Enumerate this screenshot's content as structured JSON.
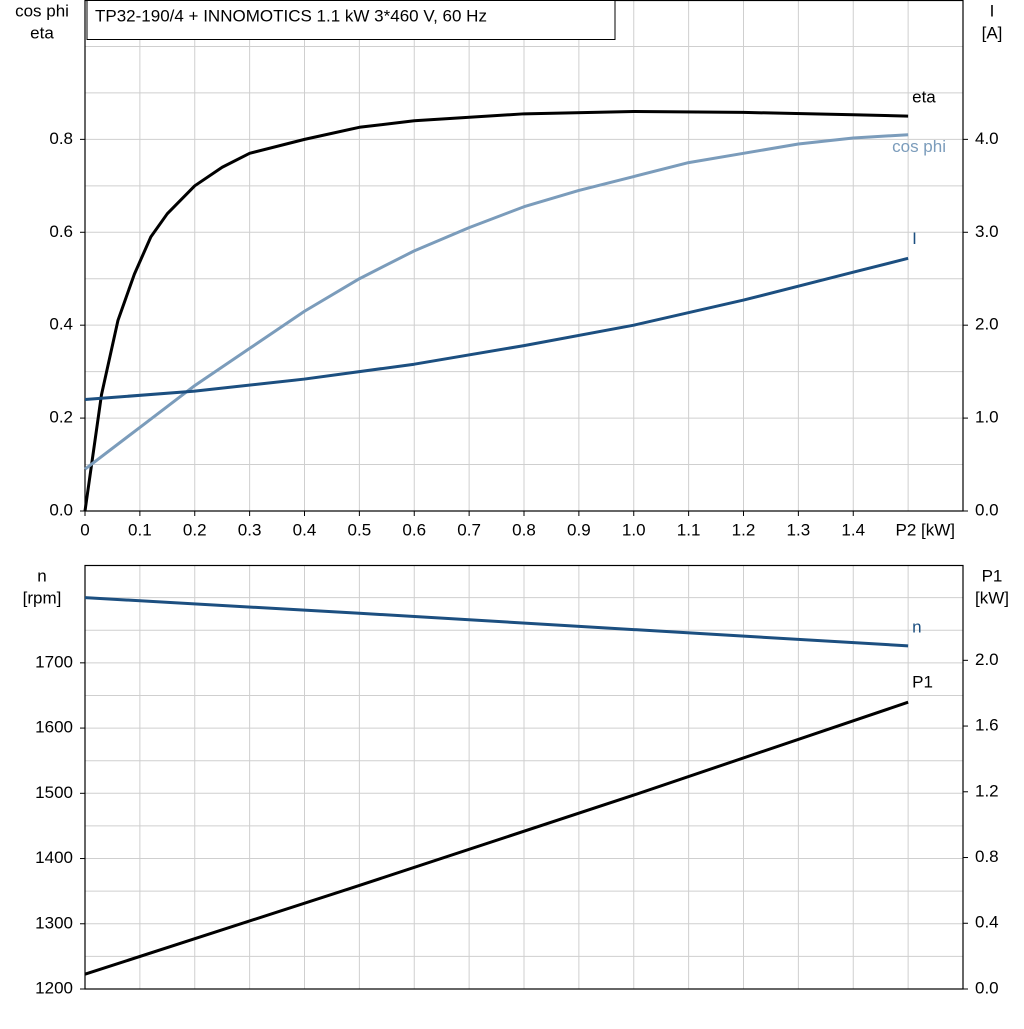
{
  "chart_data": [
    {
      "type": "line",
      "title": "TP32-190/4 + INNOMOTICS   1.1 kW   3*460 V, 60 Hz",
      "y_label": [
        "cos phi",
        "eta"
      ],
      "y2_label": [
        "I",
        "[A]"
      ],
      "x_label": "P2 [kW]",
      "xlim": [
        0,
        1.6
      ],
      "xticks": [
        0,
        0.1,
        0.2,
        0.3,
        0.4,
        0.5,
        0.6,
        0.7,
        0.8,
        0.9,
        {
          "value": 1,
          "label": "1.0"
        },
        1.1,
        1.2,
        1.3,
        1.4
      ],
      "x_minor_ticks": [
        1.5
      ],
      "ylim": [
        0,
        1.1
      ],
      "yticks": [
        {
          "value": 0,
          "label": "0.0"
        },
        0.2,
        0.4,
        0.6,
        0.8
      ],
      "y_minor_ticks": [
        0.1,
        0.3,
        0.5,
        0.7,
        0.9,
        1.0
      ],
      "y2lim": [
        0,
        5.5
      ],
      "y2ticks": [
        {
          "value": 0,
          "label": "0.0"
        },
        {
          "value": 1,
          "label": "1.0"
        },
        {
          "value": 2,
          "label": "2.0"
        },
        {
          "value": 3,
          "label": "3.0"
        },
        {
          "value": 4,
          "label": "4.0"
        }
      ],
      "grid": true,
      "series": [
        {
          "name": "eta",
          "color": "#000000",
          "x": [
            0,
            0.03,
            0.06,
            0.09,
            0.12,
            0.15,
            0.2,
            0.25,
            0.3,
            0.4,
            0.5,
            0.6,
            0.8,
            1.0,
            1.2,
            1.4,
            1.5
          ],
          "values": [
            0,
            0.25,
            0.41,
            0.51,
            0.59,
            0.64,
            0.7,
            0.74,
            0.77,
            0.8,
            0.826,
            0.84,
            0.855,
            0.86,
            0.858,
            0.853,
            0.85
          ]
        },
        {
          "name": "cos phi",
          "color": "#7b9cbb",
          "x": [
            0,
            0.1,
            0.2,
            0.3,
            0.4,
            0.5,
            0.6,
            0.7,
            0.8,
            0.9,
            1.0,
            1.1,
            1.2,
            1.3,
            1.4,
            1.5
          ],
          "values": [
            0.09,
            0.18,
            0.27,
            0.35,
            0.43,
            0.5,
            0.56,
            0.61,
            0.655,
            0.69,
            0.72,
            0.75,
            0.77,
            0.79,
            0.803,
            0.81
          ]
        },
        {
          "name": "I",
          "color": "#1c4f80",
          "axis": "y2",
          "x": [
            0,
            0.2,
            0.4,
            0.6,
            0.8,
            1.0,
            1.2,
            1.4,
            1.5
          ],
          "values": [
            1.2,
            1.29,
            1.42,
            1.58,
            1.78,
            2.0,
            2.27,
            2.57,
            2.72
          ]
        }
      ]
    },
    {
      "type": "line",
      "y_label": [
        "n",
        "[rpm]"
      ],
      "y2_label": [
        "P1",
        "[kW]"
      ],
      "xlim": [
        0,
        1.6
      ],
      "x_grid": [
        0.1,
        0.2,
        0.3,
        0.4,
        0.5,
        0.6,
        0.7,
        0.8,
        0.9,
        1.0,
        1.1,
        1.2,
        1.3,
        1.4,
        1.5
      ],
      "ylim": [
        1200,
        1850
      ],
      "yticks": [
        1200,
        1300,
        1400,
        1500,
        1600,
        1700
      ],
      "y_minor_ticks": [
        1250,
        1350,
        1450,
        1550,
        1650,
        1750,
        1800
      ],
      "y2lim": [
        0,
        2.58
      ],
      "y2ticks": [
        {
          "value": 0,
          "label": "0.0"
        },
        0.4,
        0.8,
        1.2,
        1.6,
        {
          "value": 2,
          "label": "2.0"
        }
      ],
      "grid": true,
      "series": [
        {
          "name": "n",
          "color": "#1c4f80",
          "x": [
            0,
            0.5,
            1.0,
            1.5
          ],
          "values": [
            1800,
            1776,
            1751,
            1726
          ]
        },
        {
          "name": "P1",
          "color": "#000000",
          "axis": "y2",
          "x": [
            0,
            0.5,
            1.0,
            1.5
          ],
          "values": [
            0.09,
            0.63,
            1.18,
            1.745
          ]
        }
      ]
    }
  ]
}
